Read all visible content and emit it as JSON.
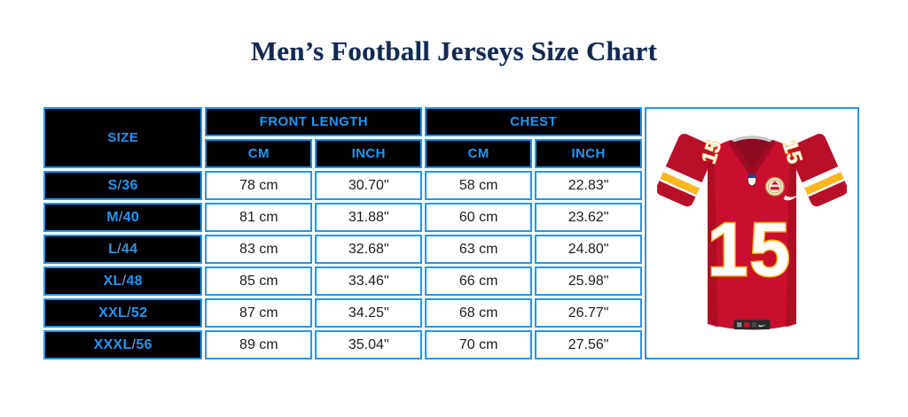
{
  "chart_data": {
    "type": "table",
    "title": "Men’s Football Jerseys Size Chart",
    "headers": {
      "size": "SIZE",
      "front_length": "FRONT LENGTH",
      "chest": "CHEST",
      "cm": "CM",
      "inch": "INCH"
    },
    "rows": [
      {
        "size": "S/36",
        "front_cm": "78 cm",
        "front_inch": "30.70\"",
        "chest_cm": "58 cm",
        "chest_inch": "22.83\""
      },
      {
        "size": "M/40",
        "front_cm": "81 cm",
        "front_inch": "31.88\"",
        "chest_cm": "60 cm",
        "chest_inch": "23.62\""
      },
      {
        "size": "L/44",
        "front_cm": "83 cm",
        "front_inch": "32.68\"",
        "chest_cm": "63 cm",
        "chest_inch": "24.80\""
      },
      {
        "size": "XL/48",
        "front_cm": "85 cm",
        "front_inch": "33.46\"",
        "chest_cm": "66 cm",
        "chest_inch": "25.98\""
      },
      {
        "size": "XXL/52",
        "front_cm": "87 cm",
        "front_inch": "34.25\"",
        "chest_cm": "68 cm",
        "chest_inch": "26.77\""
      },
      {
        "size": "XXXL/56",
        "front_cm": "89 cm",
        "front_inch": "35.04\"",
        "chest_cm": "70 cm",
        "chest_inch": "27.56\""
      }
    ],
    "layout": {
      "header_bg": "#000000",
      "accent_blue": "#2196f3",
      "grid": "separate-blue-borders"
    }
  },
  "jersey": {
    "number": "15",
    "colors": {
      "red": "#c8102e",
      "dark_red": "#a60c23",
      "gold": "#ffb81c",
      "white": "#ffffff"
    }
  },
  "colors": {
    "accent_blue": "#2196f3",
    "title_navy": "#13294f",
    "header_bg": "#000000"
  }
}
